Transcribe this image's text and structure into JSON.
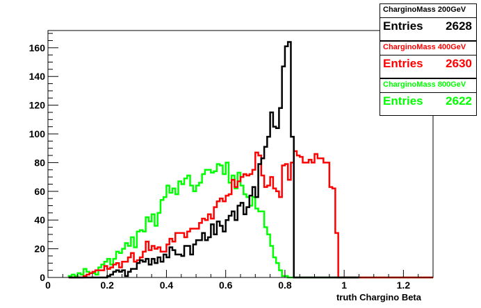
{
  "chart_data": {
    "type": "histogram-step",
    "xlabel": "truth Chargino Beta",
    "ylabel": "",
    "xlim": [
      0,
      1.3
    ],
    "ylim": [
      0,
      172
    ],
    "bin_width": 0.01,
    "xticks": [
      "0",
      "0.2",
      "0.4",
      "0.6",
      "0.8",
      "1",
      "1.2"
    ],
    "xtick_values": [
      0,
      0.2,
      0.4,
      0.6,
      0.8,
      1.0,
      1.2
    ],
    "yticks": [
      "0",
      "20",
      "40",
      "60",
      "80",
      "100",
      "120",
      "140",
      "160"
    ],
    "ytick_values": [
      0,
      20,
      40,
      60,
      80,
      100,
      120,
      140,
      160
    ],
    "grid": false,
    "legend_placement": "top-right, outside",
    "series": [
      {
        "name": "CharginoMass 200GeV",
        "color": "#000000",
        "entries_label": "Entries",
        "entries": "2628",
        "x_start": 0.07,
        "counts": [
          0,
          0,
          0,
          0,
          0,
          0,
          0,
          0,
          0,
          0,
          0,
          0,
          0,
          1,
          2,
          4,
          5,
          4,
          5,
          1,
          4,
          6,
          6,
          10,
          12,
          11,
          13,
          9,
          13,
          10,
          14,
          11,
          16,
          14,
          21,
          19,
          16,
          16,
          15,
          22,
          22,
          16,
          23,
          26,
          26,
          31,
          26,
          28,
          37,
          30,
          39,
          36,
          32,
          40,
          43,
          46,
          40,
          50,
          52,
          44,
          49,
          57,
          63,
          56,
          79,
          83,
          91,
          98,
          115,
          105,
          104,
          118,
          147,
          161,
          164,
          98,
          0,
          0,
          0,
          0,
          0,
          0,
          0,
          0,
          0,
          0,
          0,
          0,
          0,
          0,
          0,
          0,
          0,
          0,
          0,
          0,
          0,
          0
        ]
      },
      {
        "name": "CharginoMass 400GeV",
        "color": "#ff0000",
        "entries_label": "Entries",
        "entries": "2630",
        "x_start": 0.07,
        "counts": [
          0,
          0,
          0,
          0,
          0,
          1,
          2,
          3,
          4,
          5,
          5,
          5,
          8,
          6,
          7,
          9,
          10,
          7,
          11,
          11,
          14,
          17,
          11,
          12,
          14,
          18,
          25,
          19,
          22,
          20,
          21,
          18,
          18,
          23,
          27,
          25,
          31,
          31,
          31,
          28,
          32,
          34,
          34,
          34,
          38,
          41,
          40,
          44,
          41,
          49,
          53,
          55,
          53,
          57,
          58,
          68,
          63,
          67,
          70,
          72,
          71,
          72,
          75,
          87,
          85,
          71,
          63,
          64,
          70,
          62,
          60,
          56,
          78,
          79,
          68,
          80,
          88,
          85,
          84,
          80,
          80,
          82,
          80,
          86,
          83,
          83,
          80,
          80,
          63,
          62,
          31,
          0,
          0,
          0,
          0,
          0,
          0,
          0,
          0,
          0,
          0,
          0,
          0,
          0,
          0,
          0,
          0,
          0,
          0,
          0,
          0,
          0,
          0,
          0,
          0,
          0,
          0,
          0,
          0,
          0,
          0,
          0,
          0,
          0,
          0,
          0,
          0,
          0,
          0,
          0,
          0,
          0,
          0,
          0,
          0,
          0,
          0,
          0,
          0,
          0,
          0,
          0,
          0,
          0,
          0,
          0,
          0,
          0,
          0,
          0,
          0,
          0,
          0,
          0,
          0,
          0,
          0,
          0,
          0,
          0,
          0,
          0,
          0,
          0,
          0,
          0,
          0,
          0,
          0,
          0,
          0,
          0,
          0,
          0,
          0,
          0,
          0,
          0,
          0,
          0,
          0,
          0,
          0,
          0,
          0,
          0,
          0,
          0,
          0,
          0,
          0,
          0,
          0,
          0,
          0,
          0,
          0,
          0,
          0,
          0,
          0,
          0,
          0,
          0,
          0,
          0,
          0,
          0,
          0,
          0,
          0,
          0,
          0,
          0,
          0,
          0,
          0,
          0,
          0,
          0,
          0,
          0,
          0,
          0,
          0,
          0,
          0,
          0,
          0,
          0,
          0,
          0,
          0,
          0,
          0,
          0,
          0,
          0,
          0,
          0,
          0,
          0,
          0,
          0,
          0,
          0,
          0,
          0,
          0,
          0,
          0,
          0,
          0,
          0,
          0,
          0,
          0,
          0,
          0,
          0,
          0,
          0,
          0,
          0,
          0,
          0,
          0,
          0,
          0,
          0,
          0,
          0,
          0,
          0,
          0,
          0,
          0,
          0,
          0,
          0,
          0,
          0,
          0,
          0,
          0,
          0,
          0,
          0,
          0,
          0,
          0,
          0,
          0,
          0,
          0,
          0,
          0,
          0,
          0,
          0,
          0,
          0,
          0,
          0,
          0
        ]
      },
      {
        "name": "CharginoMass 800GeV",
        "color": "#00ff00",
        "entries_label": "Entries",
        "entries": "2622",
        "x_start": 0.07,
        "counts": [
          1,
          2,
          1,
          3,
          2,
          6,
          4,
          3,
          3,
          2,
          7,
          9,
          11,
          13,
          9,
          13,
          18,
          17,
          20,
          24,
          22,
          28,
          21,
          32,
          33,
          32,
          42,
          39,
          44,
          36,
          45,
          54,
          56,
          64,
          59,
          62,
          58,
          67,
          65,
          69,
          71,
          64,
          60,
          64,
          66,
          72,
          75,
          75,
          73,
          74,
          79,
          78,
          72,
          80,
          66,
          71,
          62,
          73,
          64,
          58,
          56,
          50,
          56,
          48,
          46,
          46,
          35,
          30,
          22,
          14,
          10,
          5,
          1,
          1,
          0,
          0,
          0,
          0,
          0,
          0,
          0,
          0,
          0,
          0,
          0,
          0,
          0,
          0,
          0,
          0,
          0,
          0,
          0,
          0,
          0,
          0,
          0,
          0,
          0,
          0,
          0,
          0,
          0,
          0,
          0,
          0,
          0,
          0,
          0,
          0,
          0,
          0,
          0,
          0,
          0,
          0,
          0,
          0,
          0,
          0,
          0,
          0,
          0,
          0,
          0,
          0,
          0,
          0,
          0,
          0,
          0,
          0,
          0,
          0,
          0,
          0,
          0,
          0,
          0,
          0,
          0,
          0,
          0,
          0,
          0,
          0,
          0,
          0,
          0,
          0,
          0,
          0,
          0,
          0,
          0,
          0,
          0,
          0,
          0,
          0,
          0,
          0,
          0,
          0,
          0,
          0,
          0,
          0,
          0,
          0,
          0,
          0,
          0,
          0,
          0,
          0,
          0,
          0,
          0,
          0,
          0,
          0,
          0,
          0,
          0,
          0,
          0,
          0,
          0,
          0,
          0,
          0,
          0,
          0,
          0,
          0,
          0,
          0,
          0,
          0,
          0,
          0,
          0,
          0,
          0,
          0,
          0,
          0,
          0,
          0,
          0,
          0,
          0,
          0,
          0,
          0,
          0,
          0,
          0,
          0,
          0,
          0,
          0,
          0,
          0,
          0,
          0,
          0,
          0,
          0,
          0,
          0,
          0,
          0,
          0,
          0,
          0,
          0,
          0,
          0,
          0,
          0,
          0,
          0,
          0,
          0,
          0,
          0,
          0,
          0,
          0,
          0,
          0,
          0,
          0,
          0,
          0,
          0,
          0,
          0,
          0,
          0,
          0,
          0,
          0,
          0,
          0,
          0,
          0,
          0,
          0,
          0,
          0,
          0,
          0,
          0,
          0,
          0,
          0,
          0,
          0,
          0,
          0,
          0,
          0,
          0,
          0,
          0,
          0,
          0,
          0,
          0,
          0,
          0,
          0,
          0,
          0,
          0,
          0,
          0,
          0,
          0,
          0,
          0,
          0,
          0,
          0
        ]
      }
    ]
  }
}
